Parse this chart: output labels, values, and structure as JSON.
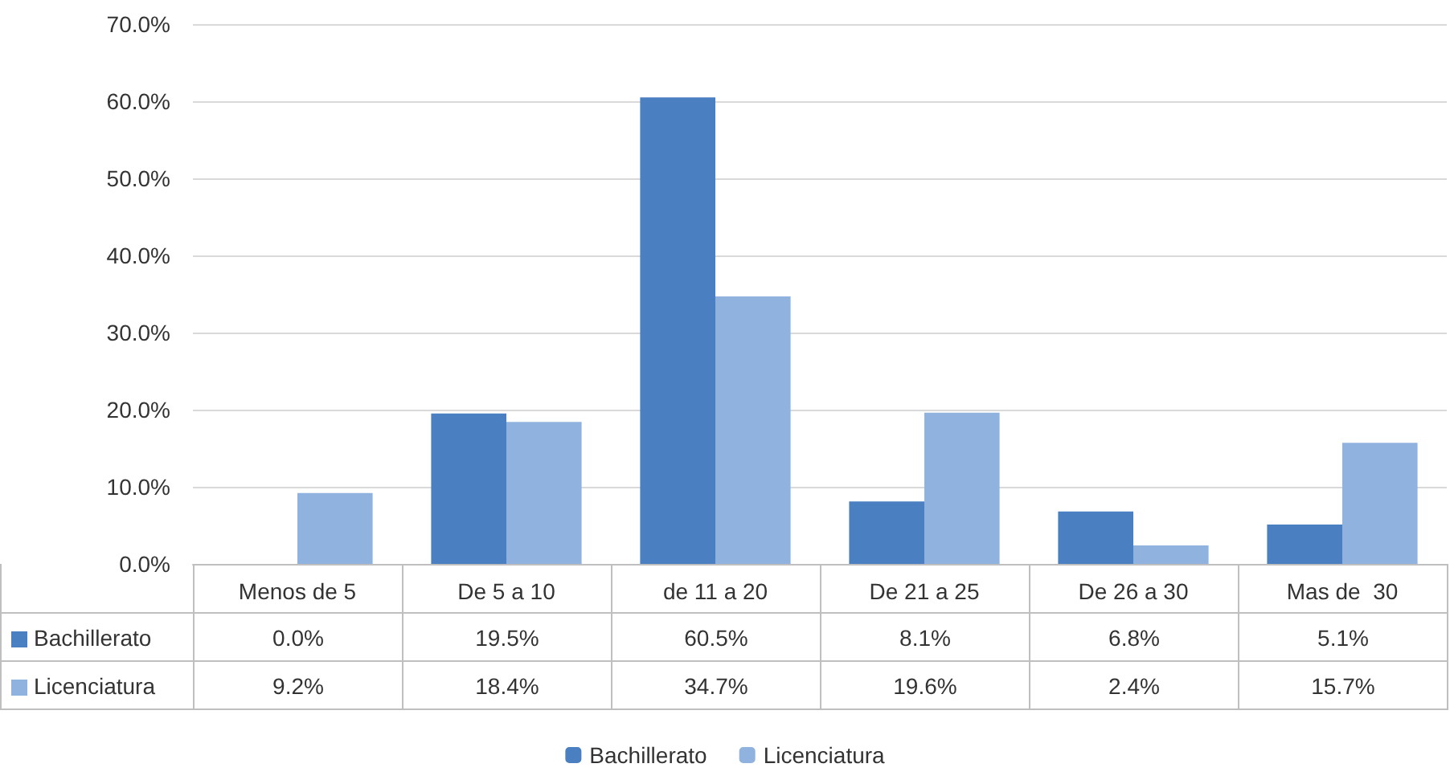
{
  "chart_data": {
    "type": "bar",
    "categories": [
      "Menos de 5",
      "De 5 a 10",
      "de 11 a 20",
      "De 21 a 25",
      "De 26 a 30",
      "Mas de  30"
    ],
    "series": [
      {
        "name": "Bachillerato",
        "color": "#4a7fc1",
        "values": [
          0.0,
          19.5,
          60.5,
          8.1,
          6.8,
          5.1
        ],
        "value_labels": [
          "0.0%",
          "19.5%",
          "60.5%",
          "8.1%",
          "6.8%",
          "5.1%"
        ]
      },
      {
        "name": "Licenciatura",
        "color": "#8fb3de",
        "values": [
          9.2,
          18.4,
          34.7,
          19.6,
          2.4,
          15.7
        ],
        "value_labels": [
          "9.2%",
          "18.4%",
          "34.7%",
          "19.6%",
          "2.4%",
          "15.7%"
        ]
      }
    ],
    "ylim": [
      0,
      70
    ],
    "yticks": [
      {
        "value": 0,
        "label": "0.0%"
      },
      {
        "value": 10,
        "label": "10.0%"
      },
      {
        "value": 20,
        "label": "20.0%"
      },
      {
        "value": 30,
        "label": "30.0%"
      },
      {
        "value": 40,
        "label": "40.0%"
      },
      {
        "value": 50,
        "label": "50.0%"
      },
      {
        "value": 60,
        "label": "60.0%"
      },
      {
        "value": 70,
        "label": "70.0%"
      }
    ],
    "grid": "y",
    "legend": "bottom"
  }
}
